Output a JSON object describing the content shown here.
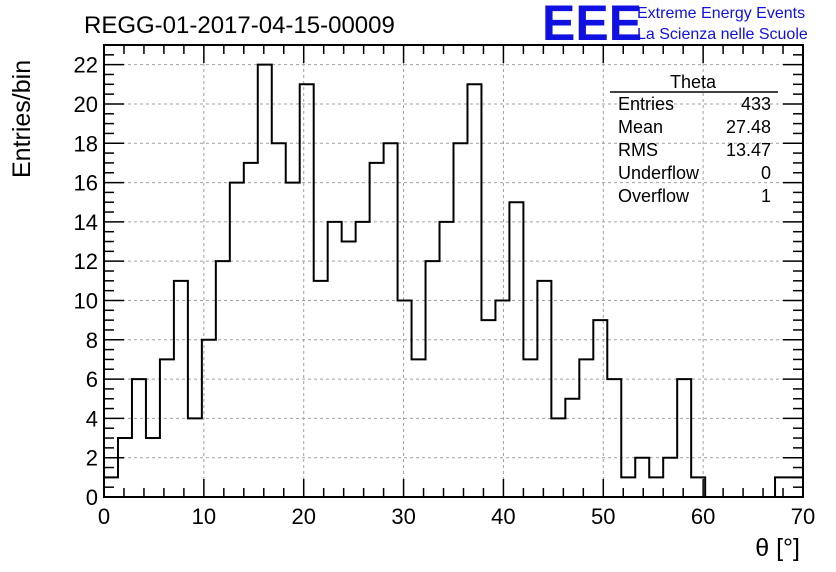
{
  "chart_data": {
    "type": "histogram",
    "title": "REGG-01-2017-04-15-00009",
    "xlabel": "θ [°]",
    "ylabel": "Entries/bin",
    "xlim": [
      0,
      70
    ],
    "ylim": [
      0,
      23
    ],
    "bin_width": 1.4,
    "x_ticks": [
      0,
      10,
      20,
      30,
      40,
      50,
      60,
      70
    ],
    "y_ticks": [
      0,
      2,
      4,
      6,
      8,
      10,
      12,
      14,
      16,
      18,
      20,
      22
    ],
    "grid": true,
    "values": [
      1,
      3,
      6,
      3,
      7,
      11,
      4,
      8,
      12,
      16,
      17,
      22,
      18,
      16,
      21,
      11,
      14,
      13,
      14,
      17,
      18,
      10,
      7,
      12,
      14,
      18,
      21,
      9,
      10,
      15,
      7,
      11,
      4,
      5,
      7,
      9,
      6,
      1,
      2,
      1,
      2,
      6,
      1,
      0,
      0,
      0,
      0,
      0,
      1,
      1
    ]
  },
  "stats_box": {
    "name": "Theta",
    "rows": [
      {
        "label": "Entries",
        "value": "433"
      },
      {
        "label": "Mean",
        "value": "27.48"
      },
      {
        "label": "RMS",
        "value": "13.47"
      },
      {
        "label": "Underflow",
        "value": "0"
      },
      {
        "label": "Overflow",
        "value": "1"
      }
    ]
  },
  "logo": {
    "text": "EEE",
    "line1": "Extreme Energy Events",
    "line2": "La Scienza nelle Scuole",
    "color": "#1010e0"
  },
  "colors": {
    "histogram_line": "#000000",
    "grid": "#a0a0a0"
  }
}
